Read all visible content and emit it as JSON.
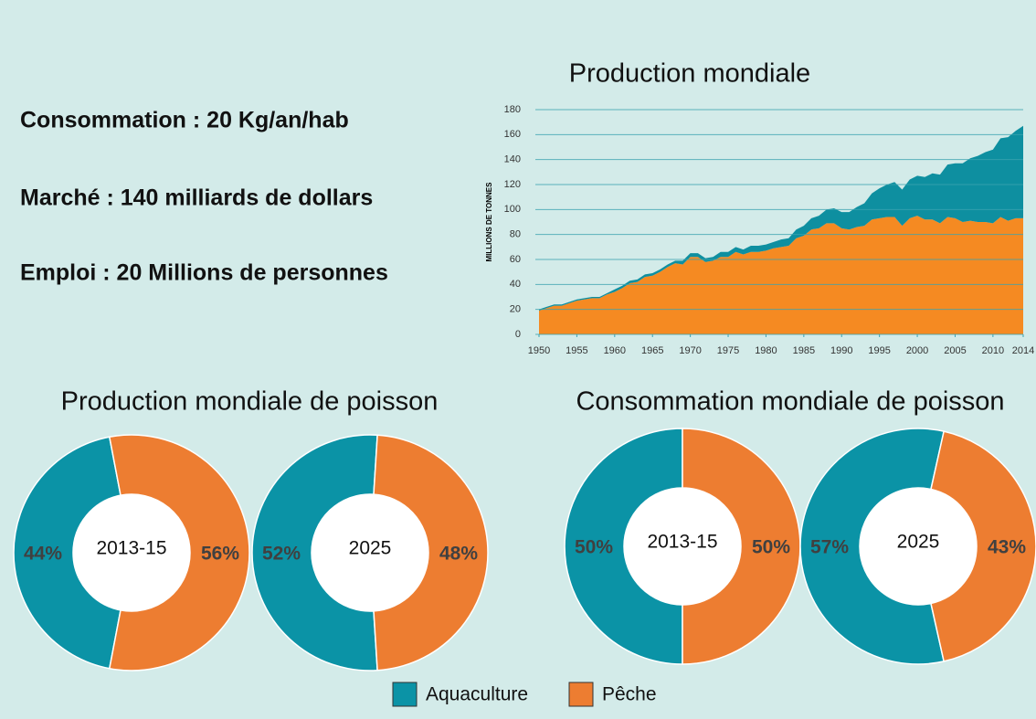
{
  "facts": [
    "Consommation : 20 Kg/an/hab",
    "Marché : 140 milliards de dollars",
    "Emploi : 20 Millions de personnes"
  ],
  "legend": [
    {
      "name": "Aquaculture",
      "color": "#0b93a6"
    },
    {
      "name": "Pêche",
      "color": "#ed7d31"
    }
  ],
  "chart_data": [
    {
      "type": "area",
      "title": "Production mondiale",
      "ylabel": "MILLIONS DE TONNES",
      "stacked": true,
      "grid": true,
      "x": [
        1950,
        1951,
        1952,
        1953,
        1954,
        1955,
        1956,
        1957,
        1958,
        1959,
        1960,
        1961,
        1962,
        1963,
        1964,
        1965,
        1966,
        1967,
        1968,
        1969,
        1970,
        1971,
        1972,
        1973,
        1974,
        1975,
        1976,
        1977,
        1978,
        1979,
        1980,
        1981,
        1982,
        1983,
        1984,
        1985,
        1986,
        1987,
        1988,
        1989,
        1990,
        1991,
        1992,
        1993,
        1994,
        1995,
        1996,
        1997,
        1998,
        1999,
        2000,
        2001,
        2002,
        2003,
        2004,
        2005,
        2006,
        2007,
        2008,
        2009,
        2010,
        2011,
        2012,
        2013,
        2014
      ],
      "series": [
        {
          "color": "#f58a22",
          "values": [
            19,
            21,
            23,
            23,
            25,
            27,
            28,
            29,
            29,
            32,
            34,
            37,
            41,
            42,
            46,
            47,
            50,
            54,
            57,
            56,
            62,
            62,
            58,
            59,
            62,
            62,
            66,
            64,
            66,
            66,
            67,
            69,
            70,
            71,
            77,
            79,
            84,
            85,
            89,
            89,
            85,
            84,
            86,
            87,
            92,
            93,
            94,
            94,
            87,
            93,
            95,
            92,
            92,
            89,
            94,
            93,
            90,
            91,
            90,
            90,
            89,
            94,
            91,
            93,
            93
          ]
        },
        {
          "color": "#0e8fa0",
          "values": [
            1,
            1,
            1,
            1,
            1,
            1,
            1,
            1,
            1,
            1,
            2,
            2,
            2,
            2,
            2,
            2,
            2,
            2,
            2,
            3,
            3,
            3,
            3,
            3,
            4,
            4,
            4,
            4,
            5,
            5,
            5,
            5,
            6,
            6,
            7,
            8,
            9,
            10,
            11,
            12,
            13,
            14,
            16,
            18,
            21,
            24,
            26,
            28,
            29,
            31,
            32,
            34,
            37,
            39,
            42,
            44,
            47,
            50,
            53,
            56,
            59,
            63,
            67,
            70,
            74
          ]
        }
      ],
      "xlim": [
        1950,
        2014
      ],
      "ylim": [
        0,
        180
      ],
      "xticks": [
        1950,
        1955,
        1960,
        1965,
        1970,
        1975,
        1980,
        1985,
        1990,
        1995,
        2000,
        2005,
        2010,
        2014
      ],
      "yticks": [
        0,
        20,
        40,
        60,
        80,
        100,
        120,
        140,
        160,
        180
      ]
    },
    {
      "type": "donut",
      "title": "Production mondiale de poisson",
      "rings": [
        {
          "label": "2013-15",
          "values": [
            44,
            56
          ],
          "value_labels": [
            "44%",
            "56%"
          ]
        },
        {
          "label": "2025",
          "values": [
            52,
            48
          ],
          "value_labels": [
            "52%",
            "48%"
          ]
        }
      ]
    },
    {
      "type": "donut",
      "title": "Consommation mondiale de poisson",
      "rings": [
        {
          "label": "2013-15",
          "values": [
            50,
            50
          ],
          "value_labels": [
            "50%",
            "50%"
          ]
        },
        {
          "label": "2025",
          "values": [
            57,
            43
          ],
          "value_labels": [
            "57%",
            "43%"
          ]
        }
      ]
    }
  ]
}
